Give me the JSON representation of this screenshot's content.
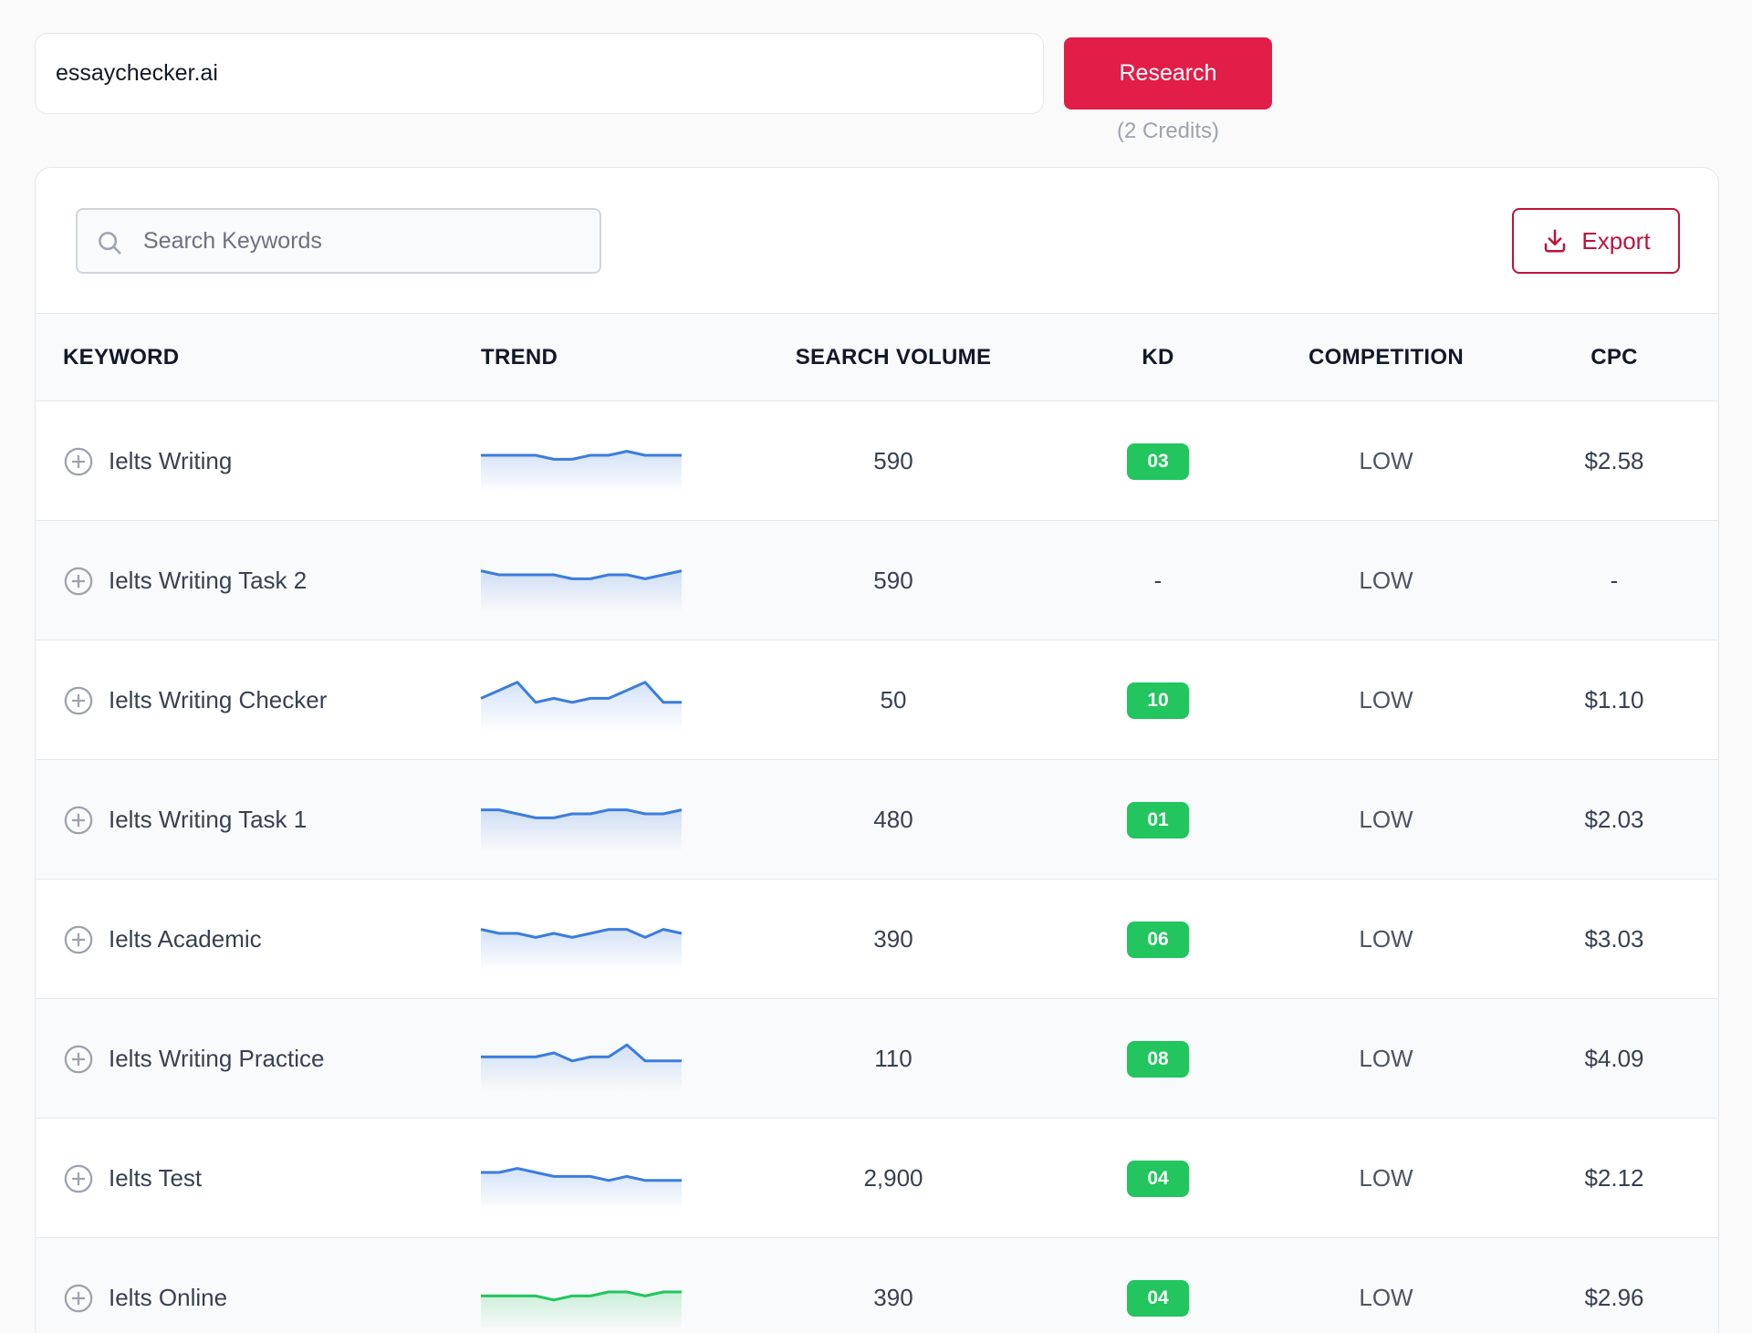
{
  "top": {
    "domain_value": "essaychecker.ai",
    "research_label": "Research",
    "credits_label": "(2 Credits)"
  },
  "toolbar": {
    "search_placeholder": "Search Keywords",
    "export_label": "Export"
  },
  "colors": {
    "accent": "#e11d48",
    "kd_badge": "#22c55e",
    "trend_blue": "#3b7ddd",
    "trend_green": "#22c55e"
  },
  "table": {
    "headers": {
      "keyword": "KEYWORD",
      "trend": "TREND",
      "volume": "SEARCH VOLUME",
      "kd": "KD",
      "competition": "COMPETITION",
      "cpc": "CPC"
    },
    "rows": [
      {
        "keyword": "Ielts Writing",
        "volume": "590",
        "kd": "03",
        "competition": "LOW",
        "cpc": "$2.58",
        "trend_color": "blue",
        "trend": [
          5,
          5,
          5,
          5,
          4,
          4,
          5,
          5,
          6,
          5,
          5,
          5
        ]
      },
      {
        "keyword": "Ielts Writing Task 2",
        "volume": "590",
        "kd": "-",
        "competition": "LOW",
        "cpc": "-",
        "trend_color": "blue",
        "trend": [
          6,
          5,
          5,
          5,
          5,
          4,
          4,
          5,
          5,
          4,
          5,
          6
        ]
      },
      {
        "keyword": "Ielts Writing Checker",
        "volume": "50",
        "kd": "10",
        "competition": "LOW",
        "cpc": "$1.10",
        "trend_color": "blue",
        "trend": [
          4,
          6,
          8,
          3,
          4,
          3,
          4,
          4,
          6,
          8,
          3,
          3
        ]
      },
      {
        "keyword": "Ielts Writing Task 1",
        "volume": "480",
        "kd": "01",
        "competition": "LOW",
        "cpc": "$2.03",
        "trend_color": "blue",
        "trend": [
          6,
          6,
          5,
          4,
          4,
          5,
          5,
          6,
          6,
          5,
          5,
          6
        ]
      },
      {
        "keyword": "Ielts Academic",
        "volume": "390",
        "kd": "06",
        "competition": "LOW",
        "cpc": "$3.03",
        "trend_color": "blue",
        "trend": [
          6,
          5,
          5,
          4,
          5,
          4,
          5,
          6,
          6,
          4,
          6,
          5
        ]
      },
      {
        "keyword": "Ielts Writing Practice",
        "volume": "110",
        "kd": "08",
        "competition": "LOW",
        "cpc": "$4.09",
        "trend_color": "blue",
        "trend": [
          4,
          4,
          4,
          4,
          5,
          3,
          4,
          4,
          7,
          3,
          3,
          3
        ]
      },
      {
        "keyword": "Ielts Test",
        "volume": "2,900",
        "kd": "04",
        "competition": "LOW",
        "cpc": "$2.12",
        "trend_color": "blue",
        "trend": [
          5,
          5,
          6,
          5,
          4,
          4,
          4,
          3,
          4,
          3,
          3,
          3
        ]
      },
      {
        "keyword": "Ielts Online",
        "volume": "390",
        "kd": "04",
        "competition": "LOW",
        "cpc": "$2.96",
        "trend_color": "green",
        "trend": [
          4,
          4,
          4,
          4,
          3,
          4,
          4,
          5,
          5,
          4,
          5,
          5
        ]
      }
    ]
  }
}
